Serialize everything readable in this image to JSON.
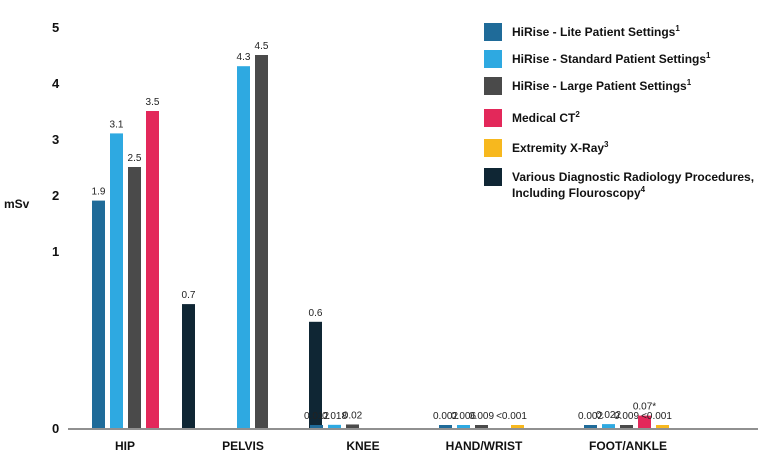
{
  "chart_data": {
    "type": "bar",
    "ylabel": "mSv",
    "categories": [
      "HIP",
      "PELVIS",
      "KNEE",
      "HAND/WRIST",
      "FOOT/ANKLE"
    ],
    "yticks": [
      "0",
      "1",
      "2",
      "3",
      "4",
      "5"
    ],
    "ylim": [
      0,
      5
    ],
    "grid": false,
    "legend_position": "top-right",
    "series": [
      {
        "name": "HiRise - Lite Patient Settings",
        "sup": "1",
        "color": "#1f6b99",
        "values": [
          1.9,
          null,
          0.012,
          0.002,
          0.002
        ],
        "labels": [
          "1.9",
          "",
          "0.012",
          "0.002",
          "0.002"
        ]
      },
      {
        "name": "HiRise - Standard Patient Settings",
        "sup": "1",
        "color": "#2ea9e1",
        "values": [
          3.1,
          4.3,
          0.018,
          0.006,
          0.022
        ],
        "labels": [
          "3.1",
          "4.3",
          "0.018",
          "0.006",
          "0.022"
        ]
      },
      {
        "name": "HiRise - Large Patient Settings",
        "sup": "1",
        "color": "#4a4a4a",
        "values": [
          2.5,
          4.5,
          0.02,
          0.009,
          0.009
        ],
        "labels": [
          "2.5",
          "4.5",
          "0.02",
          "0.009",
          "0.009"
        ]
      },
      {
        "name": "Medical CT",
        "sup": "2",
        "color": "#e3285a",
        "values": [
          3.5,
          null,
          null,
          null,
          0.07
        ],
        "labels": [
          "3.5",
          "",
          "",
          "",
          "0.07*"
        ]
      },
      {
        "name": "Extremity X-Ray",
        "sup": "3",
        "color": "#f7b81e",
        "values": [
          null,
          null,
          null,
          0.001,
          0.001
        ],
        "labels": [
          "",
          "",
          "",
          "<0.001",
          "<0.001"
        ]
      },
      {
        "name": "Various Diagnostic Radiology Procedures, Including Flouroscopy",
        "sup": "4",
        "color": "#0f2634",
        "values": [
          0.7,
          0.6,
          null,
          null,
          null
        ],
        "labels": [
          "0.7",
          "0.6",
          "",
          "",
          ""
        ]
      }
    ]
  }
}
